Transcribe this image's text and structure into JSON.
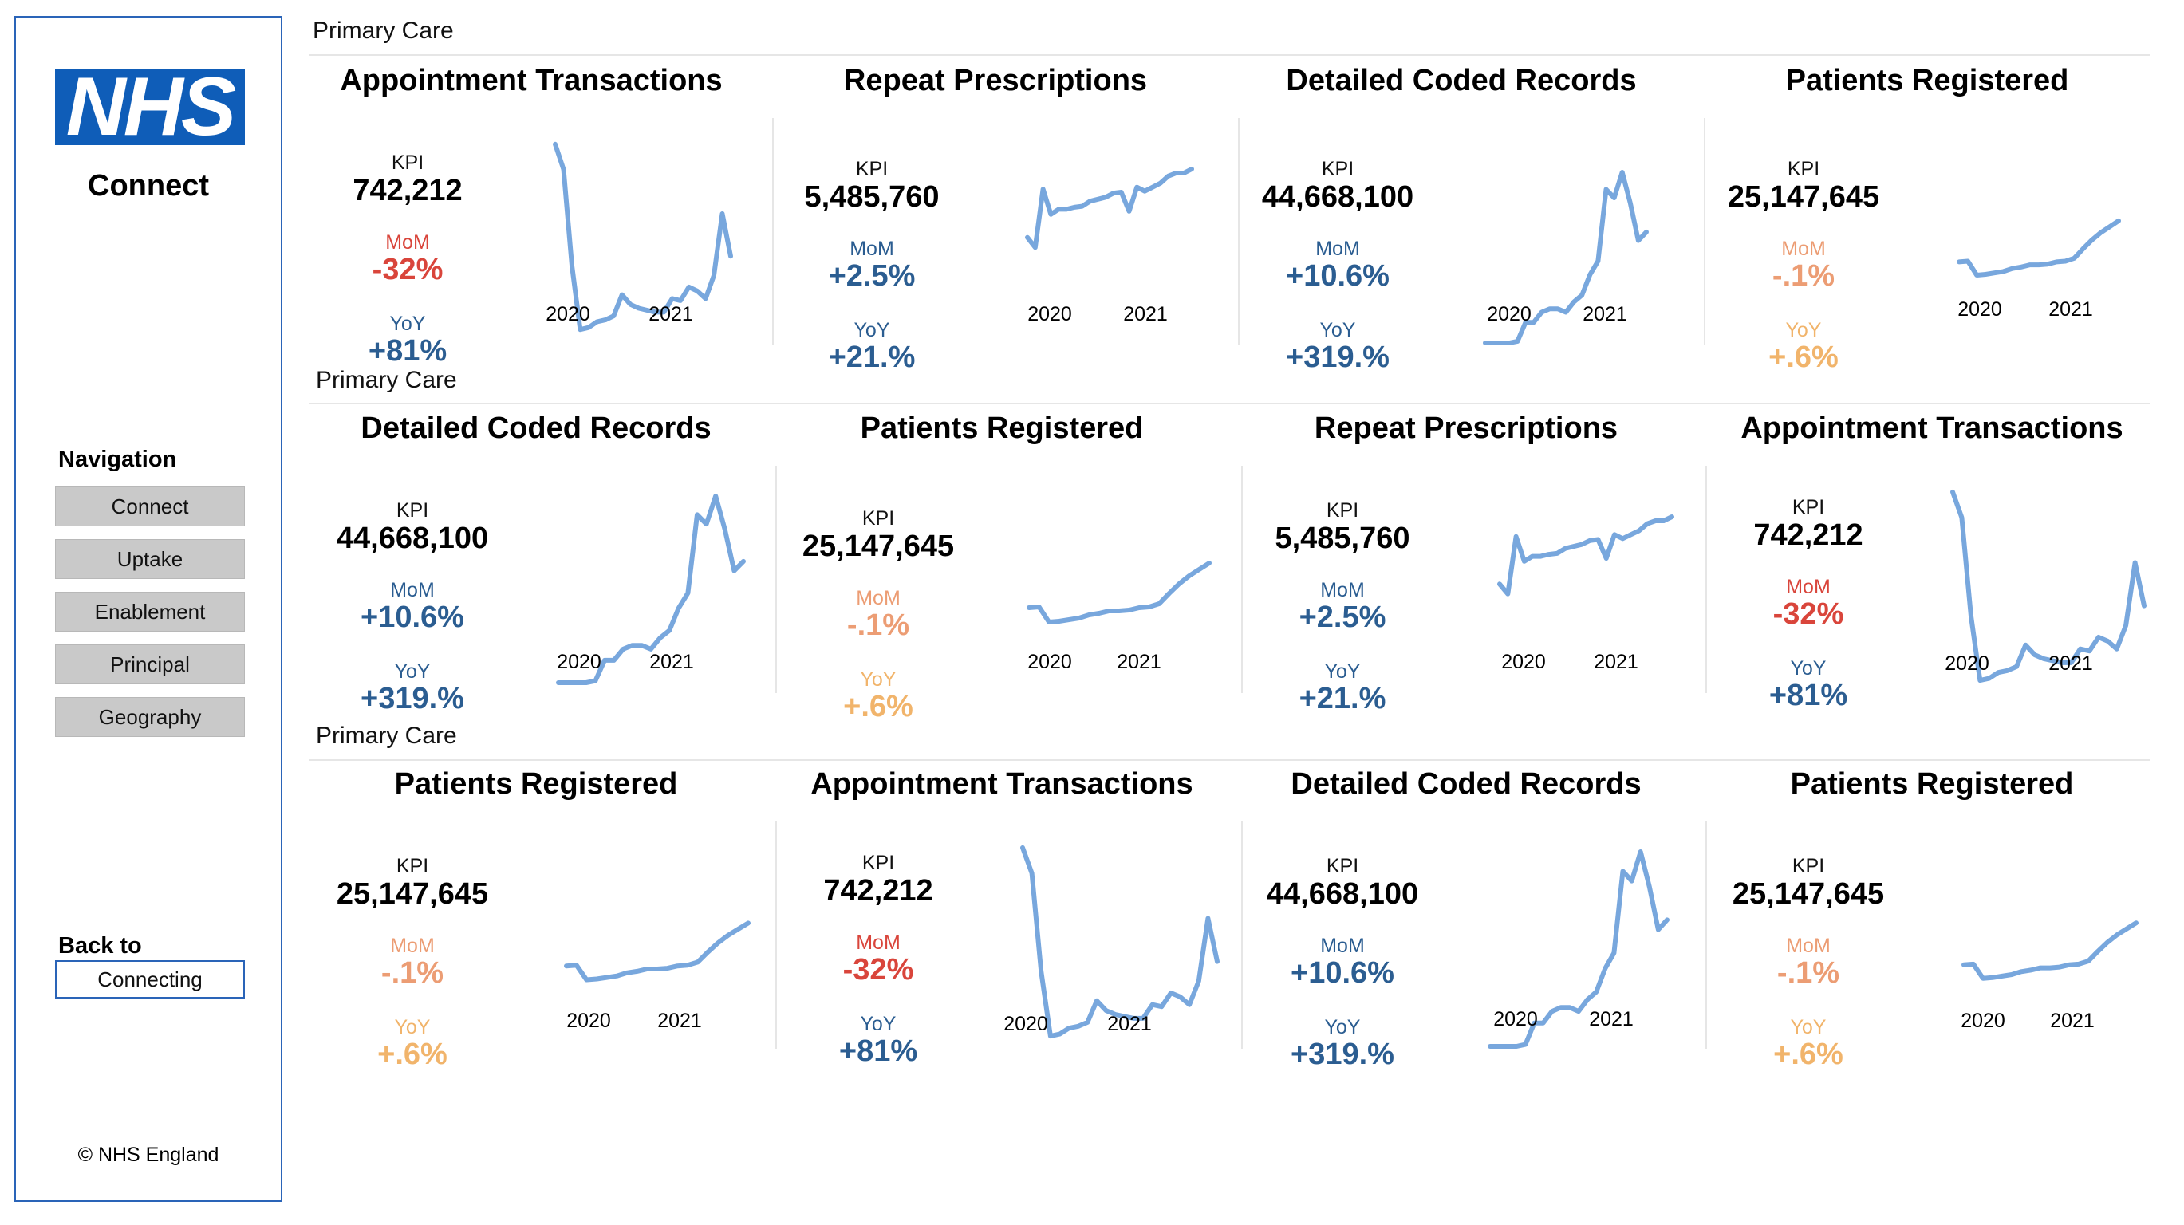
{
  "sidebar": {
    "logo_text": "NHS",
    "app_name": "Connect",
    "nav_heading": "Navigation",
    "nav_items": [
      {
        "label": "Connect"
      },
      {
        "label": "Uptake"
      },
      {
        "label": "Enablement"
      },
      {
        "label": "Principal"
      },
      {
        "label": "Geography"
      }
    ],
    "back_heading": "Back to",
    "back_button": "Connecting",
    "copyright": "©  NHS England"
  },
  "colors": {
    "sidebar_border": "#2a64b8",
    "logo_bg": "#0f5db8",
    "sparkline": "#78a7dd",
    "negative": "#d9453b",
    "positive": "#2b5d91",
    "neutral_orange": "#f1b46b",
    "neutral_salmon": "#ec9d74"
  },
  "x_labels": [
    "2020",
    "2021"
  ],
  "labels": {
    "kpi": "KPI",
    "mom": "MoM",
    "yoy": "YoY"
  },
  "series": {
    "appointment": [
      0.98,
      0.85,
      0.35,
      0.02,
      0.03,
      0.06,
      0.07,
      0.09,
      0.2,
      0.15,
      0.13,
      0.12,
      0.11,
      0.11,
      0.18,
      0.17,
      0.24,
      0.22,
      0.18,
      0.3,
      0.62,
      0.4
    ],
    "repeat": [
      0.32,
      0.22,
      0.8,
      0.55,
      0.6,
      0.6,
      0.62,
      0.63,
      0.68,
      0.7,
      0.72,
      0.76,
      0.77,
      0.58,
      0.82,
      0.78,
      0.82,
      0.86,
      0.93,
      0.96,
      0.96,
      1.0
    ],
    "detailed": [
      0.0,
      0.0,
      0.0,
      0.0,
      0.01,
      0.12,
      0.12,
      0.18,
      0.2,
      0.2,
      0.18,
      0.24,
      0.28,
      0.4,
      0.48,
      0.9,
      0.85,
      1.0,
      0.82,
      0.6,
      0.65
    ],
    "patients": [
      0.3,
      0.31,
      0.12,
      0.13,
      0.15,
      0.17,
      0.21,
      0.23,
      0.26,
      0.26,
      0.27,
      0.3,
      0.31,
      0.35,
      0.48,
      0.6,
      0.7,
      0.78,
      0.86
    ]
  },
  "sections": [
    {
      "label": "Primary Care"
    },
    {
      "label": "Primary Care"
    },
    {
      "label": "Primary Care"
    }
  ],
  "cards": [
    {
      "title": "Appointment Transactions",
      "kpi": "742,212",
      "mom": "-32%",
      "yoy": "+81%"
    },
    {
      "title": "Repeat Prescriptions",
      "kpi": "5,485,760",
      "mom": "+2.5%",
      "yoy": "+21.%"
    },
    {
      "title": "Detailed Coded Records",
      "kpi": "44,668,100",
      "mom": "+10.6%",
      "yoy": "+319.%"
    },
    {
      "title": "Patients Registered",
      "kpi": "25,147,645",
      "mom": "-.1%",
      "yoy": "+.6%"
    },
    {
      "title": "Detailed Coded Records",
      "kpi": "44,668,100",
      "mom": "+10.6%",
      "yoy": "+319.%"
    },
    {
      "title": "Patients Registered",
      "kpi": "25,147,645",
      "mom": "-.1%",
      "yoy": "+.6%"
    },
    {
      "title": "Repeat Prescriptions",
      "kpi": "5,485,760",
      "mom": "+2.5%",
      "yoy": "+21.%"
    },
    {
      "title": "Appointment Transactions",
      "kpi": "742,212",
      "mom": "-32%",
      "yoy": "+81%"
    },
    {
      "title": "Patients Registered",
      "kpi": "25,147,645",
      "mom": "-.1%",
      "yoy": "+.6%"
    },
    {
      "title": "Appointment Transactions",
      "kpi": "742,212",
      "mom": "-32%",
      "yoy": "+81%"
    },
    {
      "title": "Detailed Coded Records",
      "kpi": "44,668,100",
      "mom": "+10.6%",
      "yoy": "+319.%"
    },
    {
      "title": "Patients Registered",
      "kpi": "25,147,645",
      "mom": "-.1%",
      "yoy": "+.6%"
    }
  ]
}
